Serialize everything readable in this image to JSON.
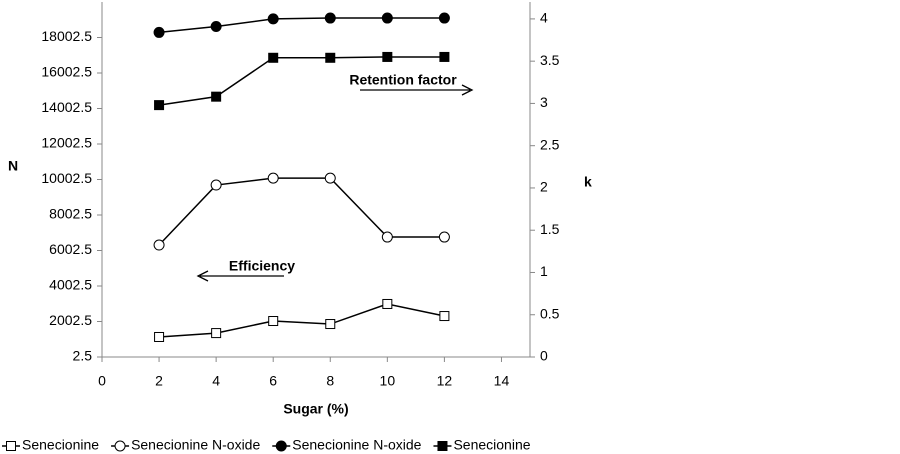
{
  "chart_data": {
    "type": "line",
    "x_label": "Sugar (%)",
    "y_label": "N",
    "y2_label": "k",
    "annotations": [
      "Retention factor",
      "Efficiency"
    ],
    "x": [
      2,
      4,
      6,
      8,
      10,
      12
    ],
    "xlim": [
      0,
      15
    ],
    "xticks": [
      0,
      2,
      4,
      6,
      8,
      10,
      12,
      14
    ],
    "ylim": [
      2.5,
      20002.5
    ],
    "yticks": [
      2.5,
      2002.5,
      4002.5,
      6002.5,
      8002.5,
      10002.5,
      12002.5,
      14002.5,
      16002.5,
      18002.5
    ],
    "y2lim": [
      0,
      4.2
    ],
    "y2ticks": [
      0,
      0.5,
      1,
      1.5,
      2,
      2.5,
      3,
      3.5,
      4
    ],
    "series": [
      {
        "name": "Senecionine",
        "color": "#000000",
        "marker": "square-open",
        "values": [
          1130,
          1350,
          2030,
          1860,
          2990,
          2310
        ]
      },
      {
        "name": "Senecionine N-oxide",
        "color": "#000000",
        "marker": "circle-open",
        "values": [
          6310,
          9690,
          10080,
          10080,
          6760,
          6760
        ]
      },
      {
        "name": "Senecionine N-oxide",
        "color": "#000000",
        "marker": "circle-filled",
        "axis": "y2",
        "values": [
          3.84,
          3.91,
          4.0,
          4.01,
          4.01,
          4.01
        ]
      },
      {
        "name": "Senecionine",
        "color": "#000000",
        "marker": "square-filled",
        "axis": "y2",
        "values": [
          2.98,
          3.08,
          3.54,
          3.54,
          3.55,
          3.55
        ]
      }
    ]
  }
}
